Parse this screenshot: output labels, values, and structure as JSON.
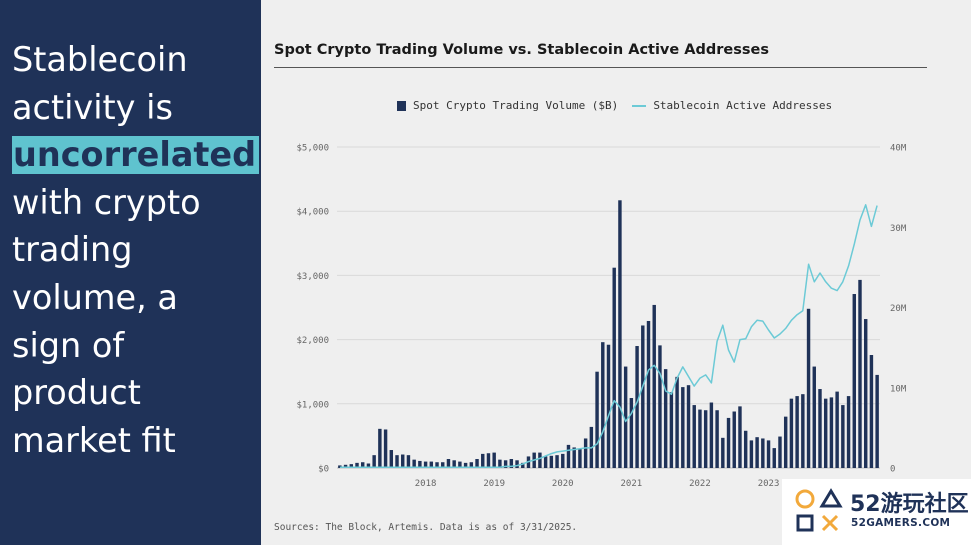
{
  "headline": {
    "line1": "Stablecoin",
    "line2": "activity is",
    "highlight": "uncorrelated",
    "line4": "with crypto",
    "line5": "trading",
    "line6": "volume, a",
    "line7": "sign of",
    "line8": "product",
    "line9": "market fit"
  },
  "colors": {
    "panel": "#1f3258",
    "highlight": "#5fc3cf",
    "bars": "#1f3258",
    "line": "#6ccad6"
  },
  "sources": "Sources: The Block, Artemis. Data is as of 3/31/2025.",
  "watermark": {
    "cn": "52游玩社区",
    "en": "52GAMERS.COM"
  },
  "chart_data": {
    "type": "bar",
    "title": "Spot Crypto Trading Volume vs. Stablecoin Active Addresses",
    "legend": {
      "placement": "top-center",
      "entries": [
        "Spot Crypto Trading Volume ($B)",
        "Stablecoin Active Addresses"
      ]
    },
    "grid": true,
    "x_ticks": [
      "2018",
      "2019",
      "2020",
      "2021",
      "2022",
      "2023"
    ],
    "y_left": {
      "ticks": [
        "$0",
        "$1,000",
        "$2,000",
        "$3,000",
        "$4,000",
        "$5,000"
      ],
      "ylim": [
        0,
        5000
      ]
    },
    "y_right": {
      "ticks": [
        "0",
        "10M",
        "20M",
        "30M",
        "40M"
      ],
      "ylim": [
        0,
        40
      ]
    },
    "x_start": "2017-04",
    "series": [
      {
        "name": "Spot Crypto Trading Volume ($B)",
        "type": "bar",
        "values": [
          40,
          50,
          60,
          80,
          90,
          70,
          200,
          610,
          600,
          280,
          200,
          210,
          200,
          130,
          110,
          100,
          100,
          90,
          90,
          140,
          120,
          100,
          80,
          90,
          140,
          220,
          230,
          240,
          130,
          120,
          140,
          120,
          80,
          180,
          240,
          240,
          180,
          190,
          200,
          220,
          360,
          320,
          300,
          460,
          640,
          1500,
          1960,
          1920,
          3120,
          4170,
          1580,
          1090,
          1900,
          2220,
          2290,
          2540,
          1910,
          1540,
          1180,
          1420,
          1260,
          1290,
          980,
          910,
          900,
          1020,
          900,
          470,
          780,
          880,
          960,
          580,
          430,
          480,
          460,
          430,
          310,
          490,
          800,
          1080,
          1120,
          1150,
          2480,
          1580,
          1230,
          1080,
          1100,
          1190,
          980,
          1120,
          2710,
          2930,
          2320,
          1760,
          1450
        ]
      },
      {
        "name": "Stablecoin Active Addresses",
        "type": "line",
        "unit": "M",
        "values": [
          0.1,
          0.1,
          0.1,
          0.1,
          0.1,
          0.1,
          0.1,
          0.1,
          0.1,
          0.1,
          0.1,
          0.1,
          0.1,
          0.1,
          0.1,
          0.1,
          0.1,
          0.1,
          0.1,
          0.1,
          0.1,
          0.1,
          0.1,
          0.1,
          0.1,
          0.1,
          0.1,
          0.1,
          0.1,
          0.2,
          0.2,
          0.3,
          0.5,
          0.8,
          1,
          1.2,
          1.5,
          1.8,
          2,
          2.1,
          2.2,
          2.3,
          2.4,
          2.5,
          2.5,
          3,
          4.5,
          6.5,
          8.4,
          7.6,
          5.8,
          6.8,
          8.2,
          10.2,
          12.2,
          12.8,
          11.8,
          9.6,
          9.2,
          11.2,
          12.6,
          11.4,
          10.2,
          11.2,
          11.6,
          10.6,
          15.8,
          17.8,
          14.7,
          13.2,
          16,
          16.1,
          17.6,
          18.4,
          18.3,
          17.2,
          16.2,
          16.7,
          17.4,
          18.4,
          19.1,
          19.6,
          25.4,
          23.2,
          24.3,
          23.2,
          22.4,
          22.1,
          23.2,
          25.2,
          27.9,
          30.9,
          32.8,
          30.1,
          32.7
        ]
      }
    ]
  }
}
